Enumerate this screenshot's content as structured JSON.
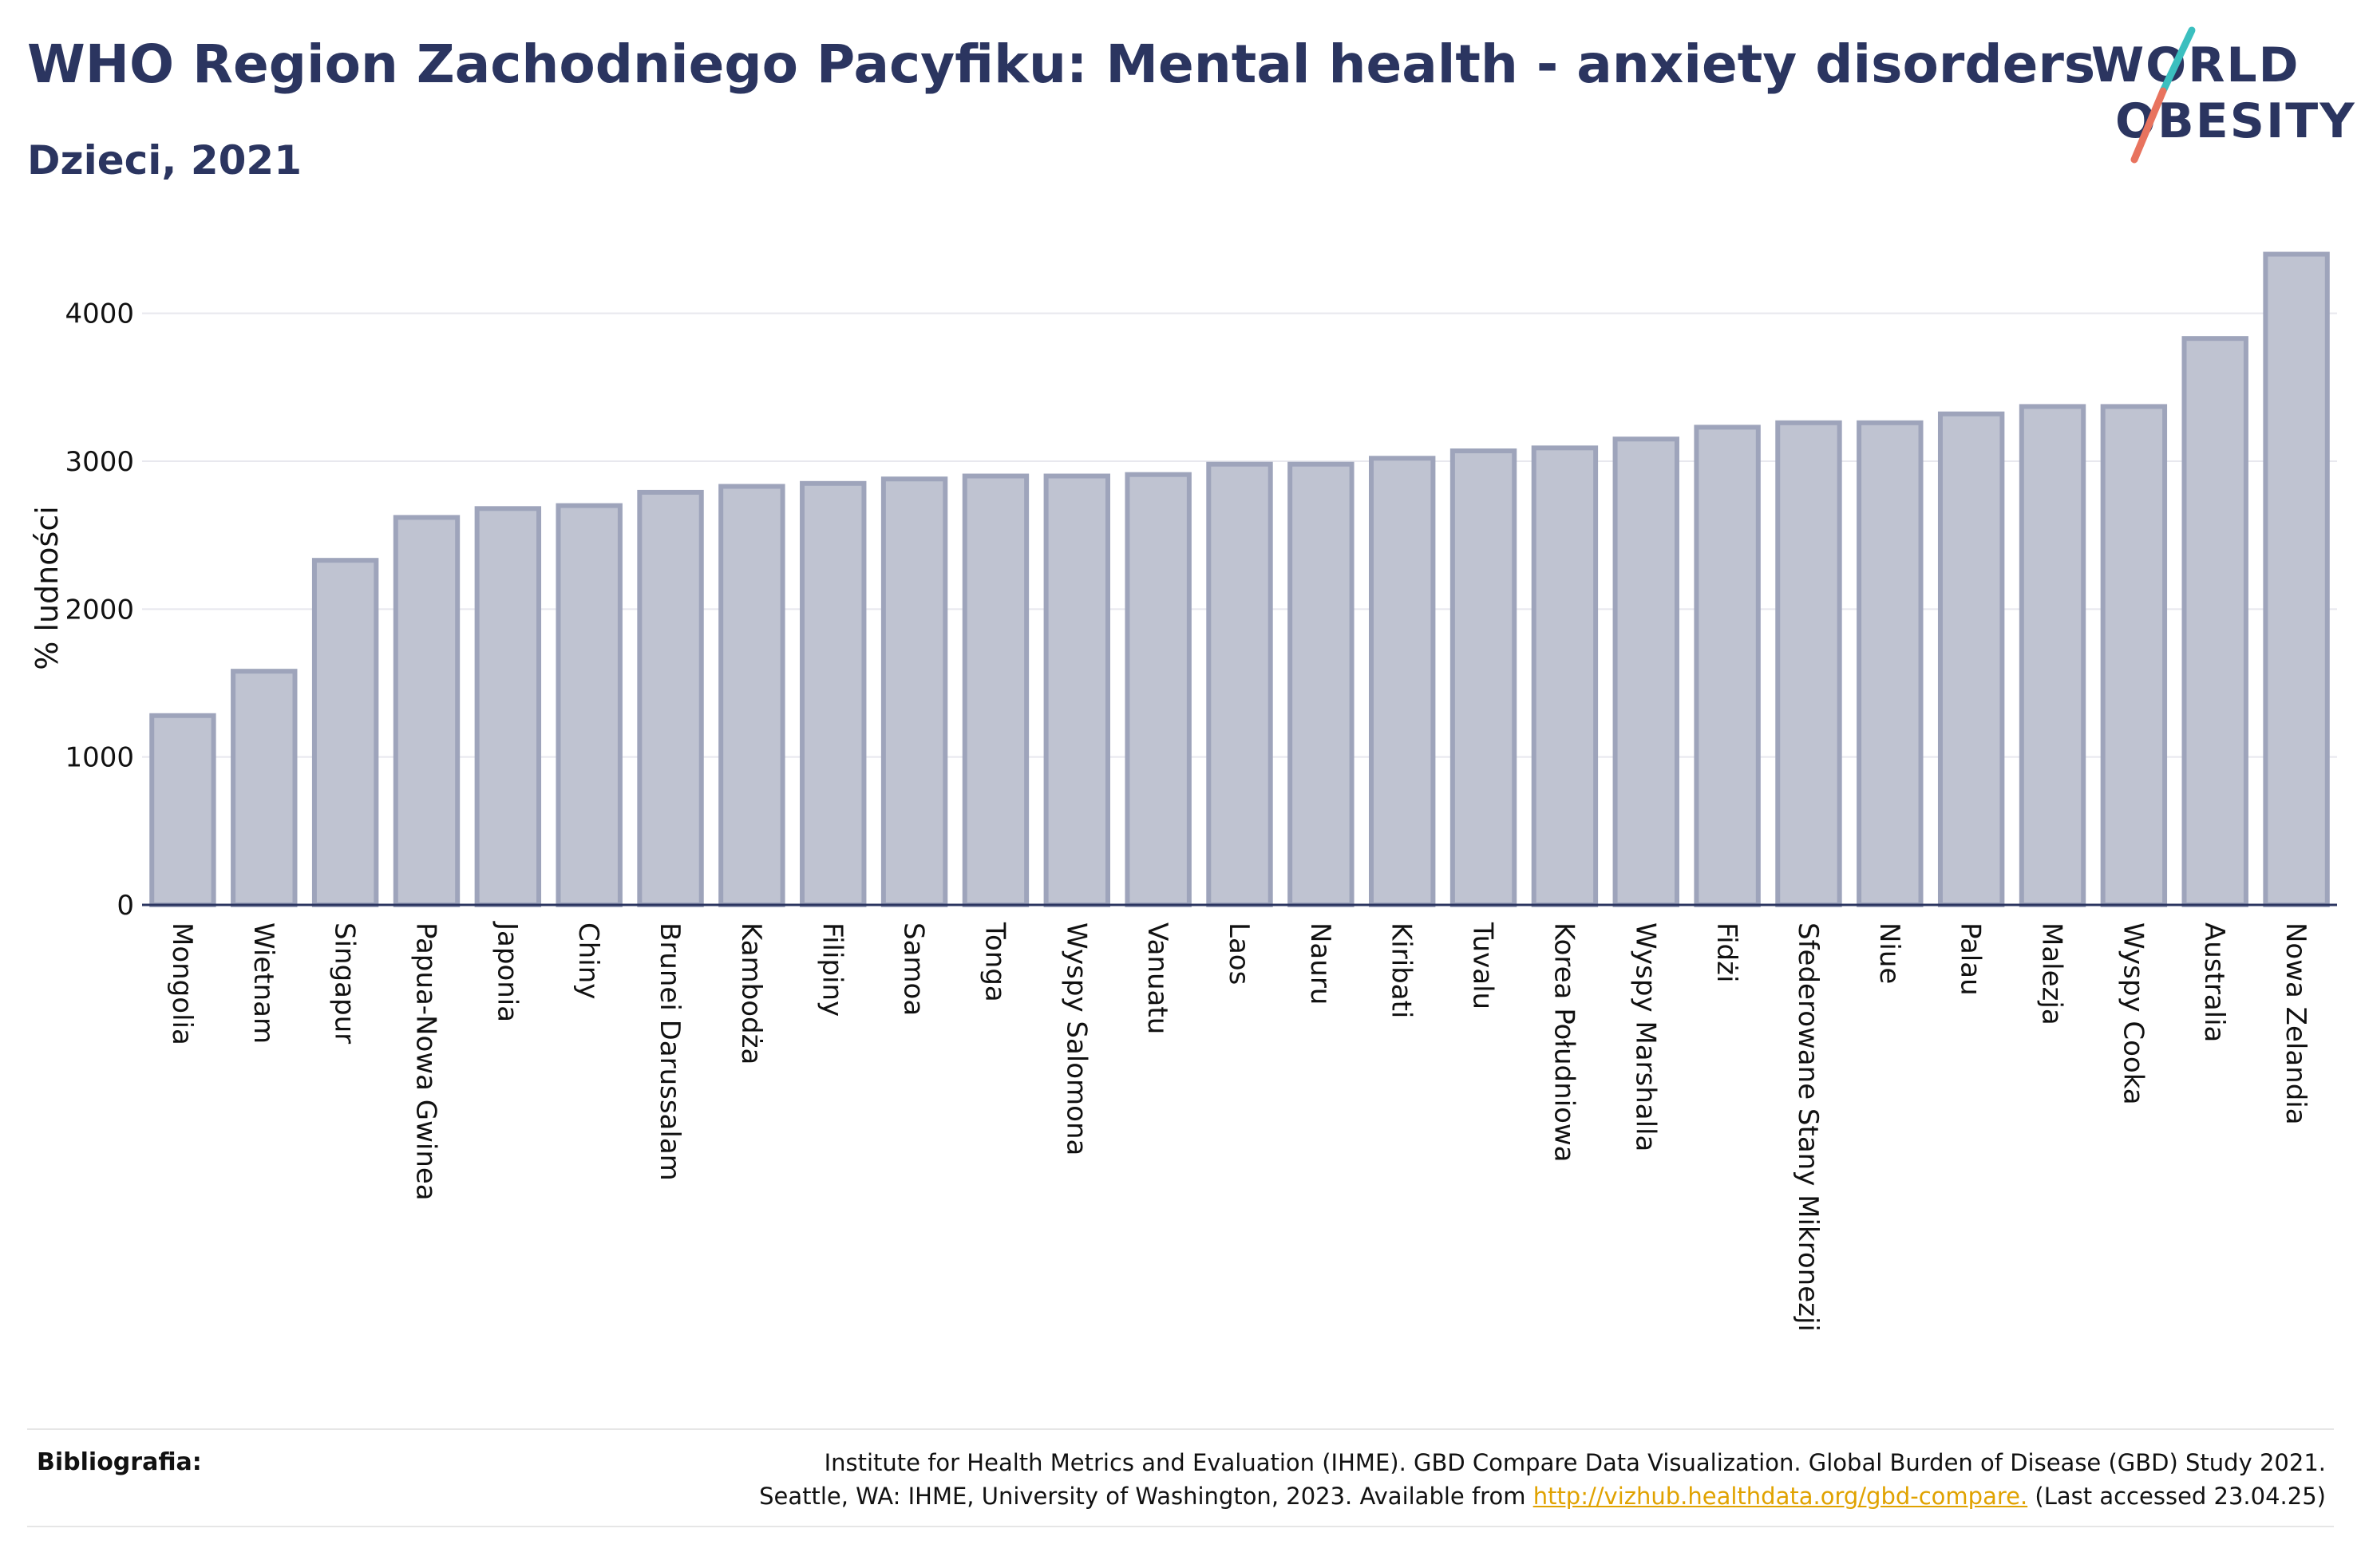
{
  "header": {
    "title": "WHO Region Zachodniego Pacyfiku: Mental health - anxiety disorders",
    "subtitle": "Dzieci, 2021"
  },
  "logo": {
    "line1": "WORLD",
    "line2": "OBESITY",
    "accent_teal": "#3bbfbf",
    "accent_coral": "#e8735e"
  },
  "colors": {
    "bar_fill": "#bfc3d1",
    "bar_stroke": "#9ea4bb",
    "text": "#2b3560",
    "grid": "#e8e8ee"
  },
  "chart_data": {
    "type": "bar",
    "title": "",
    "xlabel": "",
    "ylabel": "% ludności",
    "ylim": [
      0,
      4500
    ],
    "yticks": [
      0,
      1000,
      2000,
      3000,
      4000
    ],
    "grid": true,
    "categories": [
      "Mongolia",
      "Wietnam",
      "Singapur",
      "Papua-Nowa Gwinea",
      "Japonia",
      "Chiny",
      "Brunei Darussalam",
      "Kambodża",
      "Filipiny",
      "Samoa",
      "Tonga",
      "Wyspy Salomona",
      "Vanuatu",
      "Laos",
      "Nauru",
      "Kiribati",
      "Tuvalu",
      "Korea Południowa",
      "Wyspy Marshalla",
      "Fidżi",
      "Sfederowane Stany Mikronezji",
      "Niue",
      "Palau",
      "Malezja",
      "Wyspy Cooka",
      "Australia",
      "Nowa Zelandia"
    ],
    "values": [
      1280,
      1580,
      2330,
      2620,
      2680,
      2700,
      2790,
      2830,
      2850,
      2880,
      2900,
      2900,
      2910,
      2980,
      2980,
      3020,
      3070,
      3090,
      3150,
      3230,
      3260,
      3260,
      3320,
      3370,
      3370,
      3830,
      4400
    ]
  },
  "footer": {
    "label": "Bibliografia:",
    "line1": "Institute for Health Metrics and Evaluation (IHME). GBD Compare Data Visualization. Global Burden of Disease (GBD) Study 2021.",
    "line2_before": "Seattle, WA: IHME, University of Washington, 2023. Available from ",
    "link": "http://vizhub.healthdata.org/gbd-compare.",
    "line2_after": " (Last accessed 23.04.25)"
  }
}
